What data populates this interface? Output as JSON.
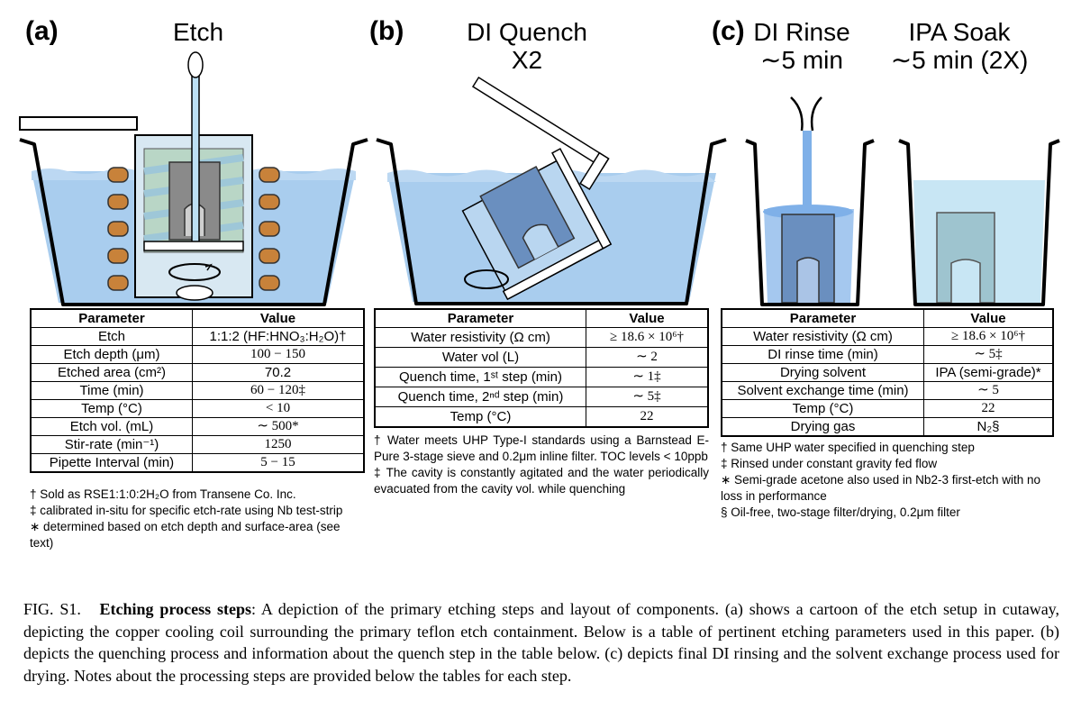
{
  "panels": [
    {
      "label": "(a)",
      "title": "Etch",
      "table": {
        "headers": [
          "Parameter",
          "Value"
        ],
        "rows": [
          [
            "Etch",
            "1:1:2 (HF:HNO₃:H₂O)†"
          ],
          [
            "Etch depth (μm)",
            "100 − 150"
          ],
          [
            "Etched area (cm²)",
            "70.2"
          ],
          [
            "Time (min)",
            "60 − 120‡"
          ],
          [
            "Temp (°C)",
            "< 10"
          ],
          [
            "Etch vol. (mL)",
            "∼ 500*"
          ],
          [
            "Stir-rate (min⁻¹)",
            "1250"
          ],
          [
            "Pipette Interval (min)",
            "5 − 15"
          ]
        ]
      },
      "notes": [
        "† Sold as RSE1:1:0:2H₂O from Transene Co. Inc.",
        "‡ calibrated in-situ for specific etch-rate using Nb test-strip",
        "∗ determined based on etch depth and surface-area (see text)"
      ]
    },
    {
      "label": "(b)",
      "title": "DI Quench\nX2",
      "table": {
        "headers": [
          "Parameter",
          "Value"
        ],
        "rows": [
          [
            "Water resistivity (Ω cm)",
            "≥ 18.6 × 10⁶†"
          ],
          [
            "Water vol (L)",
            "∼ 2"
          ],
          [
            "Quench time, 1ˢᵗ step (min)",
            "∼ 1‡"
          ],
          [
            "Quench time, 2ⁿᵈ step (min)",
            "∼ 5‡"
          ],
          [
            "Temp (°C)",
            "22"
          ]
        ]
      },
      "notes": [
        "† Water meets UHP Type-I standards using a Barnstead E-Pure 3-stage sieve and 0.2μm inline filter. TOC levels < 10ppb",
        "‡ The cavity is constantly agitated and the water periodically evacuated from the cavity vol. while quenching"
      ]
    },
    {
      "label": "(c)",
      "title_rinse": "DI Rinse\n∼5 min",
      "title_soak": "IPA Soak\n∼5 min (2X)",
      "table": {
        "headers": [
          "Parameter",
          "Value"
        ],
        "rows": [
          [
            "Water resistivity (Ω cm)",
            "≥ 18.6 × 10⁶†"
          ],
          [
            "DI rinse time (min)",
            "∼ 5‡"
          ],
          [
            "Drying solvent",
            "IPA (semi-grade)*"
          ],
          [
            "Solvent exchange time (min)",
            "∼ 5"
          ],
          [
            "Temp (°C)",
            "22"
          ],
          [
            "Drying gas",
            "N₂§"
          ]
        ]
      },
      "notes": [
        "† Same UHP water specified in quenching step",
        "‡ Rinsed under constant gravity fed flow",
        "∗ Semi-grade acetone also used in Nb2-3 first-etch with no loss in performance",
        "§ Oil-free, two-stage filter/drying, 0.2μm filter"
      ]
    }
  ],
  "caption": {
    "prefix": "FIG. S1.",
    "bold": "Etching process steps",
    "text": ": A depiction of the primary etching steps and layout of components. (a) shows a cartoon of the etch setup in cutaway, depicting the copper cooling coil surrounding the primary teflon etch containment. Below is a table of pertinent etching parameters used in this paper. (b) depicts the quenching process and information about the quench step in the table below. (c) depicts final DI rinsing and the solvent exchange process used for drying. Notes about the processing steps are provided below the tables for each step."
  },
  "colors": {
    "water": "#a9cdee",
    "water_dark": "#84b4e0",
    "cavity": "#8a8a8a",
    "copper": "#c8823a",
    "rinse": "#7fb0e8"
  }
}
